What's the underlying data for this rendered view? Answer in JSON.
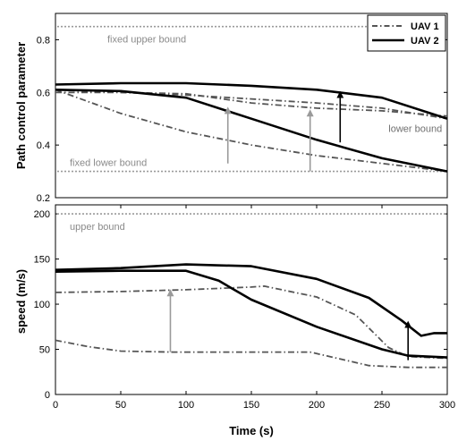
{
  "chart_data": [
    {
      "type": "line",
      "xlabel": "",
      "ylabel": "Path control parameter",
      "xlim": [
        0,
        300
      ],
      "ylim": [
        0.2,
        0.9
      ],
      "yticks": [
        0.2,
        0.4,
        0.6,
        0.8
      ],
      "yticklabels": [
        "0.2",
        "0.4",
        "0.6",
        "0.8"
      ],
      "legend": {
        "placement": "top-right",
        "entries": [
          "UAV 1",
          "UAV 2"
        ]
      },
      "series": [
        {
          "name": "UAV 1",
          "style": "dashdot",
          "x": [
            0,
            50,
            100,
            150,
            200,
            250,
            300
          ],
          "y": [
            0.61,
            0.52,
            0.45,
            0.4,
            0.36,
            0.33,
            0.3
          ]
        },
        {
          "name": "UAV 1",
          "style": "dashdot",
          "x": [
            0,
            50,
            100,
            150,
            200,
            250,
            300
          ],
          "y": [
            0.61,
            0.6,
            0.59,
            0.575,
            0.56,
            0.54,
            0.5
          ]
        },
        {
          "name": "UAV 1",
          "style": "dashdot",
          "x": [
            0,
            50,
            100,
            150,
            200,
            250,
            300
          ],
          "y": [
            0.6,
            0.6,
            0.595,
            0.56,
            0.54,
            0.53,
            0.51
          ]
        },
        {
          "name": "UAV 2",
          "style": "solid",
          "x": [
            0,
            50,
            100,
            150,
            200,
            250,
            300
          ],
          "y": [
            0.63,
            0.635,
            0.635,
            0.625,
            0.61,
            0.58,
            0.5
          ]
        },
        {
          "name": "UAV 2",
          "style": "solid",
          "x": [
            0,
            50,
            100,
            150,
            200,
            250,
            300
          ],
          "y": [
            0.61,
            0.605,
            0.58,
            0.5,
            0.42,
            0.35,
            0.3
          ]
        }
      ],
      "bounds": [
        {
          "label": "fixed upper bound",
          "y": 0.85
        },
        {
          "label": "fixed lower bound",
          "y": 0.3
        }
      ],
      "annotations": [
        {
          "label": "lower bound",
          "x": 255,
          "y": 0.45
        }
      ],
      "arrows": [
        {
          "x": 132,
          "y_from": 0.33,
          "y_to": 0.54,
          "color": "#9a9a9a"
        },
        {
          "x": 195,
          "y_from": 0.3,
          "y_to": 0.53,
          "color": "#9a9a9a"
        },
        {
          "x": 218,
          "y_from": 0.41,
          "y_to": 0.6,
          "color": "#000000"
        }
      ]
    },
    {
      "type": "line",
      "xlabel": "Time (s)",
      "ylabel": "speed (m/s)",
      "xlim": [
        0,
        300
      ],
      "ylim": [
        0,
        210
      ],
      "xticks": [
        0,
        50,
        100,
        150,
        200,
        250,
        300
      ],
      "xticklabels": [
        "0",
        "50",
        "100",
        "150",
        "200",
        "250",
        "300"
      ],
      "yticks": [
        0,
        50,
        100,
        150,
        200
      ],
      "yticklabels": [
        "0",
        "50",
        "100",
        "150",
        "200"
      ],
      "series": [
        {
          "name": "UAV 1",
          "style": "dashdot",
          "x": [
            0,
            25,
            50,
            90,
            150,
            195,
            210,
            240,
            270,
            300
          ],
          "y": [
            60,
            53,
            48,
            47,
            47,
            47,
            42,
            32,
            30,
            30
          ]
        },
        {
          "name": "UAV 1",
          "style": "dashdot",
          "x": [
            0,
            50,
            100,
            150,
            160,
            200,
            230,
            255,
            270,
            300
          ],
          "y": [
            113,
            114,
            116,
            119,
            120,
            108,
            88,
            52,
            42,
            40
          ]
        },
        {
          "name": "UAV 2",
          "style": "solid",
          "x": [
            0,
            50,
            100,
            125,
            150,
            200,
            250,
            270,
            300
          ],
          "y": [
            136,
            137,
            137,
            126,
            105,
            75,
            50,
            43,
            41
          ]
        },
        {
          "name": "UAV 2",
          "style": "solid",
          "x": [
            0,
            50,
            100,
            150,
            200,
            240,
            265,
            280,
            290,
            300
          ],
          "y": [
            138,
            140,
            144,
            142,
            128,
            107,
            82,
            65,
            68,
            68
          ]
        }
      ],
      "bounds": [
        {
          "label": "upper bound",
          "y": 200
        }
      ],
      "arrows": [
        {
          "x": 88,
          "y_from": 47,
          "y_to": 115,
          "color": "#9a9a9a"
        },
        {
          "x": 270,
          "y_from": 38,
          "y_to": 80,
          "color": "#000000"
        }
      ]
    }
  ]
}
